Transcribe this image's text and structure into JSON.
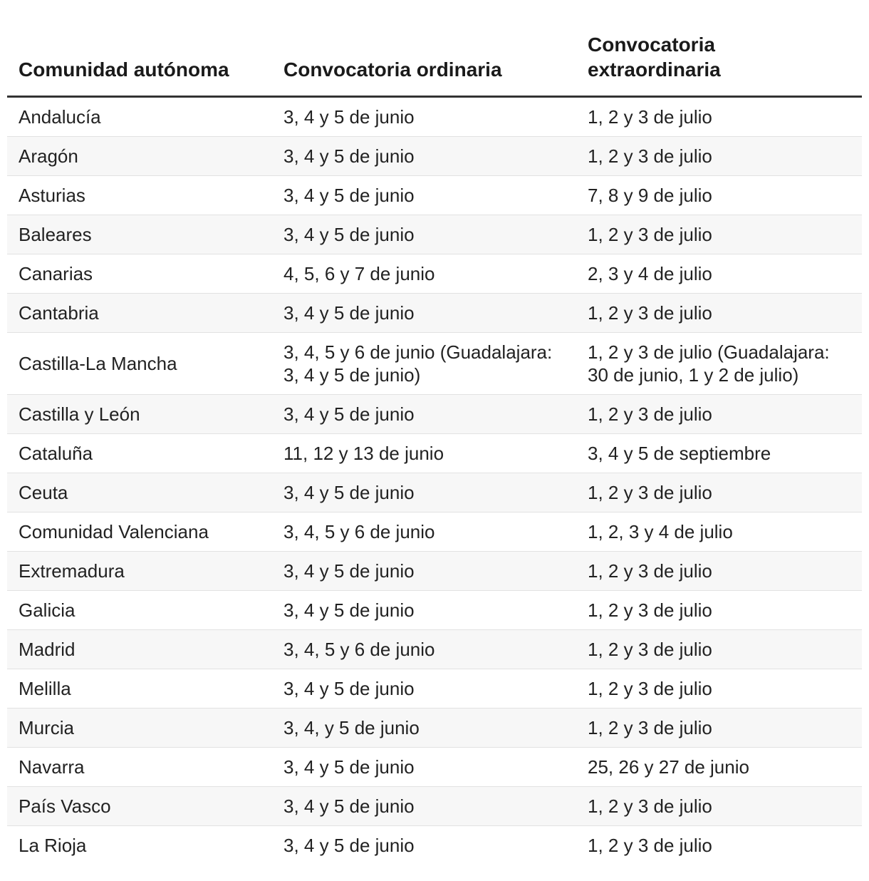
{
  "table": {
    "headers": [
      "Comunidad autónoma",
      "Convocatoria ordinaria",
      "Convocatoria extraordinaria"
    ],
    "rows": [
      [
        "Andalucía",
        "3, 4 y 5 de junio",
        "1, 2 y 3 de julio"
      ],
      [
        "Aragón",
        "3, 4 y 5 de junio",
        "1, 2 y 3 de julio"
      ],
      [
        "Asturias",
        "3, 4 y 5 de junio",
        "7, 8 y 9 de julio"
      ],
      [
        "Baleares",
        "3, 4 y 5 de junio",
        "1, 2 y 3 de julio"
      ],
      [
        "Canarias",
        "4, 5, 6 y 7 de junio",
        "2, 3 y 4 de julio"
      ],
      [
        "Cantabria",
        "3, 4 y 5 de junio",
        "1, 2 y 3 de julio"
      ],
      [
        "Castilla-La Mancha",
        "3, 4, 5 y 6 de junio (Guadalajara: 3, 4 y 5 de junio)",
        "1, 2 y 3 de julio (Guadalajara: 30 de junio, 1 y 2 de julio)"
      ],
      [
        "Castilla y León",
        "3, 4 y 5 de junio",
        "1, 2 y 3 de julio"
      ],
      [
        "Cataluña",
        "11, 12 y 13 de junio",
        "3, 4 y 5 de septiembre"
      ],
      [
        "Ceuta",
        "3, 4 y 5 de junio",
        "1, 2 y 3 de julio"
      ],
      [
        "Comunidad Valenciana",
        "3, 4, 5 y 6 de junio",
        "1, 2, 3 y 4 de julio"
      ],
      [
        "Extremadura",
        "3, 4 y 5 de junio",
        "1, 2 y 3 de julio"
      ],
      [
        "Galicia",
        "3, 4 y 5 de junio",
        "1, 2 y 3 de julio"
      ],
      [
        "Madrid",
        "3, 4, 5 y 6 de junio",
        "1, 2 y 3 de julio"
      ],
      [
        "Melilla",
        "3, 4 y 5 de junio",
        "1, 2 y 3 de julio"
      ],
      [
        "Murcia",
        "3, 4, y 5 de junio",
        "1, 2 y 3 de julio"
      ],
      [
        "Navarra",
        "3, 4 y 5 de junio",
        "25, 26 y 27 de junio"
      ],
      [
        "País Vasco",
        "3, 4 y 5 de junio",
        "1, 2 y 3 de julio"
      ],
      [
        "La Rioja",
        "3, 4 y 5 de junio",
        "1, 2 y 3 de julio"
      ]
    ]
  }
}
